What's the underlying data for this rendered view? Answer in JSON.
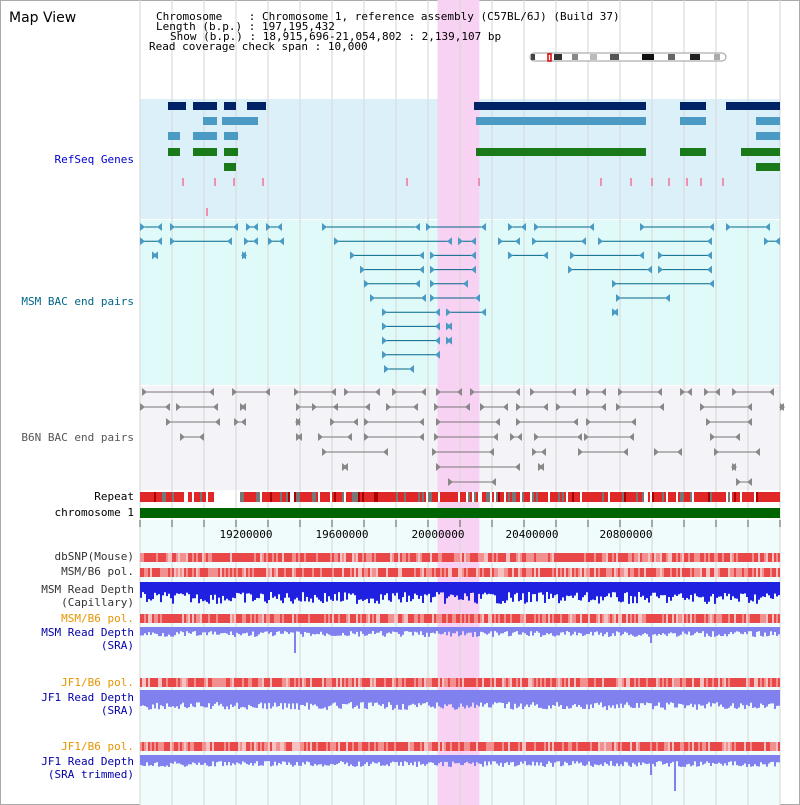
{
  "page": {
    "title": "Map View"
  },
  "info": {
    "chromosome_label": "Chromosome",
    "chromosome_value": "Chromosome 1, reference assembly (C57BL/6J) (Build 37)",
    "length_label": "Length (b.p.)",
    "length_value": "197,195,432",
    "show_label": "Show (b.p.)",
    "show_value": "18,915,696-21,054,802 : 2,139,107 bp",
    "coverage_label": "Read coverage check span",
    "coverage_value": "10,000"
  },
  "view": {
    "start": 18915696,
    "end": 21054802,
    "highlight_start": 19910000,
    "highlight_end": 20050000
  },
  "tracks": {
    "refseq": "RefSeq Genes",
    "msm_bac": "MSM BAC end pairs",
    "b6n_bac": "B6N BAC end pairs",
    "repeat": "Repeat",
    "chromosome": "chromosome 1",
    "dbsnp": "dbSNP(Mouse)",
    "msm_b6_pol_1": "MSM/B6 pol.",
    "msm_depth_cap_1": "MSM Read Depth",
    "msm_depth_cap_2": "(Capillary)",
    "msm_b6_pol_2": "MSM/B6 pol.",
    "msm_depth_sra_1": "MSM Read Depth",
    "msm_depth_sra_2": "(SRA)",
    "jf1_b6_pol_1": "JF1/B6 pol.",
    "jf1_depth_sra_1": "JF1 Read Depth",
    "jf1_depth_sra_2": "(SRA)",
    "jf1_b6_pol_2": "JF1/B6 pol.",
    "jf1_depth_trim_1": "JF1 Read Depth",
    "jf1_depth_trim_2": "(SRA trimmed)"
  },
  "ruler": {
    "ticks": [
      "19200000",
      "19600000",
      "20000000",
      "20400000",
      "20800000"
    ]
  },
  "colors": {
    "refseq_bg": "#dcf0fa",
    "msm_bg": "#e0fafa",
    "b6n_bg": "#f3f3f8",
    "data_bg": "#f0fcfc",
    "highlight": "#f8d2f2",
    "refseq_label": "#0000cc",
    "msm_label": "#006688",
    "b6n_label": "#555555",
    "pol_label": "#e69500",
    "depth_label": "#0000aa",
    "chromosome_bar": "#006400",
    "snp": "#e84040",
    "depth_cap": "#2020e0",
    "depth_sra": "#8080ee"
  }
}
